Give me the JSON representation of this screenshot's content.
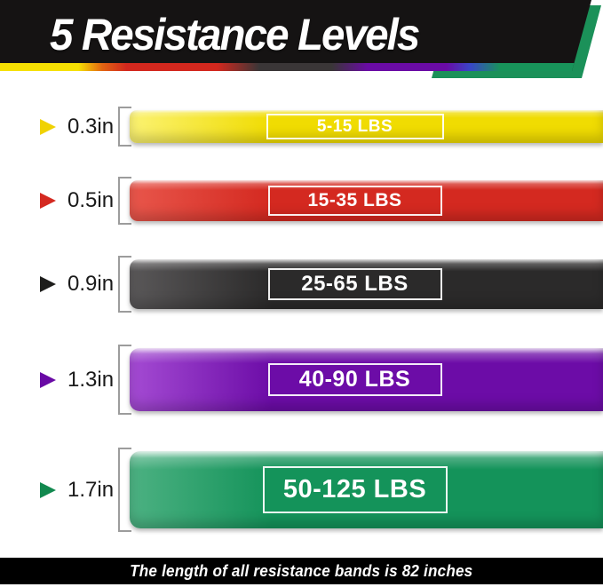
{
  "header": {
    "title": "5 Resistance Levels"
  },
  "header_colors": {
    "bar": "#151313",
    "edge": "#1B9159",
    "stripe": [
      "#F5E003",
      "#E26412",
      "#D3281E",
      "#3A3637",
      "#6A0BA5",
      "#3946C8",
      "#18945A"
    ]
  },
  "bands": [
    {
      "name": "yellow",
      "width": "0.3in",
      "resistance": "5-15 LBS",
      "colors": {
        "main": "#F0DC02",
        "light": "#FBF272",
        "triangle": "#F0D203"
      }
    },
    {
      "name": "red",
      "width": "0.5in",
      "resistance": "15-35 LBS",
      "colors": {
        "main": "#D42920",
        "light": "#E8564B",
        "triangle": "#D42920"
      }
    },
    {
      "name": "black",
      "width": "0.9in",
      "resistance": "25-65 LBS",
      "colors": {
        "main": "#2B2A2A",
        "light": "#5A5859",
        "triangle": "#1D1D1B"
      }
    },
    {
      "name": "purple",
      "width": "1.3in",
      "resistance": "40-90 LBS",
      "colors": {
        "main": "#6C0CA7",
        "light": "#A44BD3",
        "triangle": "#690AA5"
      }
    },
    {
      "name": "green",
      "width": "1.7in",
      "resistance": "50-125 LBS",
      "colors": {
        "main": "#14935A",
        "light": "#4CB182",
        "triangle": "#12894F"
      }
    }
  ],
  "footer": {
    "note": "The length of all resistance bands is 82 inches",
    "bar_color": "#000000"
  }
}
